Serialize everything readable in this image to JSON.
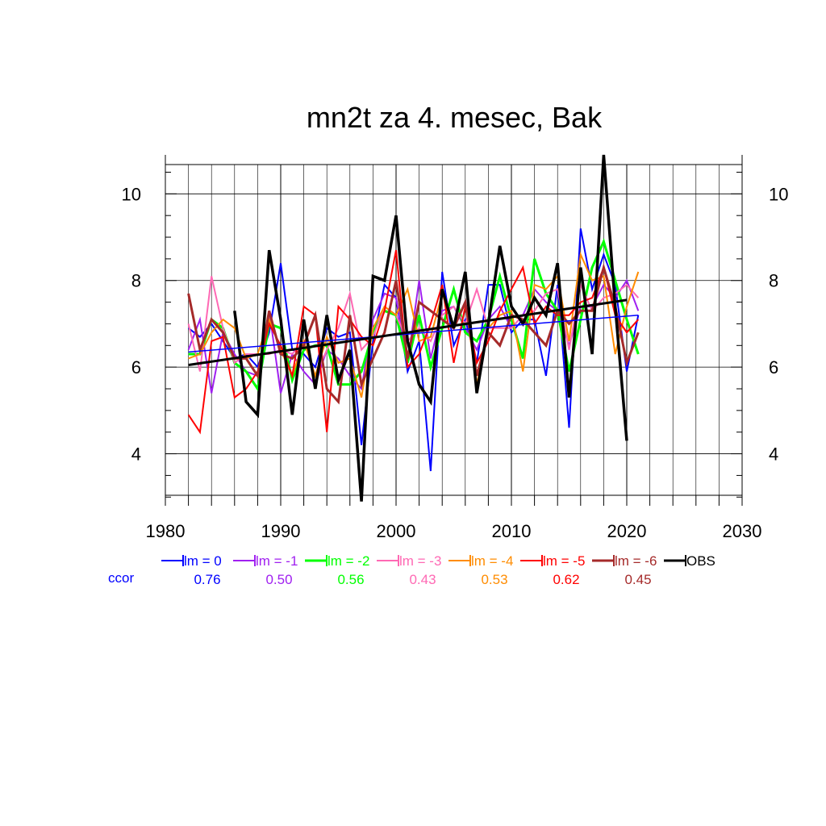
{
  "chart_data": {
    "type": "line",
    "title": "mn2t za 4. mesec, Bak",
    "xlabel": "",
    "ylabel": "",
    "xlim": [
      1980,
      2030
    ],
    "ylim": [
      2.8,
      10.9
    ],
    "x_ticks": [
      "1980",
      "1990",
      "2000",
      "2010",
      "2020",
      "2030"
    ],
    "y_ticks": [
      "4",
      "6",
      "8",
      "10"
    ],
    "grid": true,
    "legend_position": "bottom",
    "ccor_label": "ccor",
    "x": [
      1982,
      1983,
      1984,
      1985,
      1986,
      1987,
      1988,
      1989,
      1990,
      1991,
      1992,
      1993,
      1994,
      1995,
      1996,
      1997,
      1998,
      1999,
      2000,
      2001,
      2002,
      2003,
      2004,
      2005,
      2006,
      2007,
      2008,
      2009,
      2010,
      2011,
      2012,
      2013,
      2014,
      2015,
      2016,
      2017,
      2018,
      2019,
      2020,
      2021
    ],
    "series": [
      {
        "name": "lm = 0",
        "ccor": "0.76",
        "color": "#0000ff",
        "width": 2,
        "values": [
          6.9,
          6.7,
          7.0,
          6.6,
          6.2,
          6.3,
          6.0,
          6.8,
          8.4,
          6.4,
          6.3,
          6.0,
          6.9,
          6.7,
          6.8,
          4.2,
          6.6,
          7.9,
          7.6,
          5.9,
          6.6,
          3.6,
          8.2,
          6.5,
          7.1,
          6.1,
          7.9,
          7.9,
          6.8,
          7.1,
          7.1,
          5.8,
          7.9,
          4.6,
          9.2,
          7.8,
          8.6,
          7.9,
          5.9,
          7.2
        ]
      },
      {
        "name": "lm = -1",
        "ccor": "0.50",
        "color": "#a020f0",
        "width": 2,
        "values": [
          6.4,
          7.1,
          5.4,
          6.8,
          6.3,
          5.9,
          5.8,
          7.3,
          5.4,
          6.3,
          5.9,
          5.6,
          6.4,
          6.2,
          5.8,
          5.5,
          7.1,
          7.7,
          7.6,
          6.1,
          8.0,
          6.2,
          7.3,
          7.4,
          6.9,
          6.4,
          7.1,
          7.4,
          6.9,
          7.2,
          7.8,
          7.5,
          7.3,
          6.5,
          7.4,
          7.4,
          7.9,
          7.6,
          8.0,
          7.3
        ]
      },
      {
        "name": "lm = -2",
        "ccor": "0.56",
        "color": "#00ff00",
        "width": 3,
        "values": [
          6.3,
          6.3,
          7.1,
          6.9,
          6.1,
          5.9,
          5.5,
          7.0,
          6.9,
          5.7,
          6.4,
          6.5,
          6.5,
          5.6,
          5.6,
          5.9,
          6.8,
          7.3,
          7.2,
          6.1,
          7.2,
          6.0,
          6.9,
          7.8,
          6.8,
          6.6,
          7.1,
          8.1,
          7.1,
          6.2,
          8.5,
          7.7,
          7.3,
          5.9,
          7.1,
          8.3,
          8.9,
          8.0,
          7.1,
          6.3
        ]
      },
      {
        "name": "lm = -3",
        "ccor": "0.43",
        "color": "#ff69b4",
        "width": 2,
        "values": [
          7.0,
          5.9,
          8.1,
          6.9,
          6.1,
          6.3,
          6.3,
          6.3,
          6.4,
          6.3,
          6.6,
          5.8,
          6.4,
          6.9,
          7.7,
          6.4,
          6.7,
          7.4,
          7.2,
          6.6,
          6.9,
          6.6,
          7.2,
          7.4,
          7.0,
          7.8,
          6.9,
          6.9,
          6.9,
          7.2,
          7.3,
          7.7,
          7.8,
          6.4,
          7.9,
          7.3,
          7.6,
          7.7,
          7.9,
          7.6
        ]
      },
      {
        "name": "lm = -4",
        "ccor": "0.53",
        "color": "#ff8c00",
        "width": 2,
        "values": [
          6.2,
          6.3,
          6.8,
          7.1,
          6.9,
          6.2,
          6.3,
          7.1,
          6.4,
          5.8,
          6.6,
          5.8,
          6.7,
          6.1,
          6.2,
          5.3,
          6.9,
          7.4,
          7.2,
          7.8,
          6.6,
          6.7,
          7.7,
          6.9,
          7.5,
          5.6,
          6.9,
          7.2,
          7.3,
          5.9,
          7.9,
          7.8,
          8.1,
          6.6,
          8.6,
          8.0,
          8.1,
          6.3,
          7.4,
          8.2
        ]
      },
      {
        "name": "lm = -5",
        "ccor": "0.62",
        "color": "#ff0000",
        "width": 2,
        "values": [
          4.9,
          4.5,
          6.6,
          6.7,
          5.3,
          5.5,
          5.9,
          7.0,
          6.5,
          5.8,
          7.4,
          7.2,
          4.5,
          7.4,
          7.1,
          6.7,
          6.5,
          7.3,
          8.7,
          6.0,
          6.3,
          7.0,
          7.9,
          6.1,
          7.4,
          6.1,
          6.6,
          7.3,
          7.8,
          8.3,
          7.0,
          7.4,
          7.2,
          7.2,
          7.5,
          7.6,
          8.3,
          7.2,
          6.8,
          7.1
        ]
      },
      {
        "name": "lm = -6",
        "ccor": "0.45",
        "color": "#a52a2a",
        "width": 3,
        "values": [
          7.7,
          6.4,
          7.1,
          6.8,
          6.2,
          6.2,
          5.8,
          7.3,
          6.3,
          6.2,
          6.5,
          7.2,
          5.5,
          5.2,
          7.2,
          5.6,
          6.2,
          6.8,
          8.0,
          6.2,
          7.5,
          7.3,
          7.1,
          6.9,
          7.5,
          5.8,
          6.8,
          6.5,
          7.2,
          7.1,
          6.8,
          6.5,
          7.3,
          7.0,
          7.3,
          7.3,
          8.3,
          7.4,
          6.1,
          6.8
        ]
      },
      {
        "name": "OBS",
        "ccor": "",
        "color": "#000000",
        "width": 3.5,
        "values": [
          null,
          null,
          null,
          null,
          7.3,
          5.2,
          4.9,
          8.7,
          7.1,
          4.9,
          7.1,
          5.5,
          7.2,
          5.7,
          6.4,
          2.9,
          8.1,
          8.0,
          9.5,
          6.6,
          5.6,
          5.2,
          7.8,
          6.9,
          8.2,
          5.4,
          7.0,
          8.8,
          7.4,
          7.0,
          7.6,
          7.2,
          8.4,
          5.3,
          8.3,
          6.3,
          10.9,
          7.4,
          4.3,
          null
        ]
      }
    ],
    "trend_lines": [
      {
        "name": "lm = 0 trend",
        "color": "#0000ff",
        "width": 1.5,
        "x": [
          1982,
          2021
        ],
        "values": [
          6.35,
          7.2
        ]
      },
      {
        "name": "OBS trend",
        "color": "#000000",
        "width": 3,
        "x": [
          1982,
          2020
        ],
        "values": [
          6.05,
          7.55
        ]
      }
    ]
  }
}
